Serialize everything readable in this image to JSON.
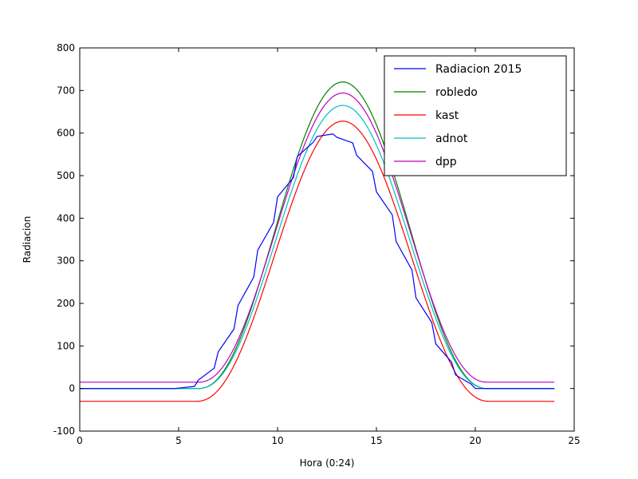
{
  "chart_data": {
    "type": "line",
    "xlabel": "Hora (0:24)",
    "ylabel": "Radiacion",
    "xlim": [
      0,
      25
    ],
    "ylim": [
      -100,
      800
    ],
    "xticks": [
      0,
      5,
      10,
      15,
      20,
      25
    ],
    "yticks": [
      -100,
      0,
      100,
      200,
      300,
      400,
      500,
      600,
      700,
      800
    ],
    "grid": false,
    "legend_position": "top-right",
    "series": [
      {
        "name": "Radiacion 2015",
        "color": "#0000ff",
        "kind": "observed",
        "x": [
          0,
          4.8,
          5.8,
          6.0,
          6.8,
          7.0,
          7.8,
          8.0,
          8.8,
          9.0,
          9.8,
          10.0,
          10.8,
          11.0,
          11.8,
          12.0,
          12.8,
          13.0,
          13.8,
          14.0,
          14.8,
          15.0,
          15.8,
          16.0,
          16.8,
          17.0,
          17.8,
          18.0,
          18.8,
          19.0,
          19.8,
          20.0,
          24.0
        ],
        "y": [
          0,
          0,
          5,
          20,
          48,
          86,
          140,
          195,
          262,
          325,
          390,
          450,
          495,
          545,
          578,
          592,
          598,
          590,
          577,
          548,
          510,
          462,
          408,
          345,
          278,
          213,
          155,
          105,
          62,
          32,
          10,
          0,
          0
        ]
      },
      {
        "name": "robledo",
        "color": "#008000",
        "kind": "model",
        "baseline": 0,
        "peak": 720,
        "center": 13.3,
        "start": 6.0,
        "end": 20.6
      },
      {
        "name": "kast",
        "color": "#ff0000",
        "kind": "model",
        "baseline": -30,
        "peak": 628,
        "center": 13.3,
        "start": 5.9,
        "end": 20.8
      },
      {
        "name": "adnot",
        "color": "#00bfbf",
        "kind": "model",
        "baseline": 0,
        "peak": 665,
        "center": 13.3,
        "start": 6.0,
        "end": 20.6
      },
      {
        "name": "dpp",
        "color": "#bf00bf",
        "kind": "model",
        "baseline": 15,
        "peak": 694,
        "center": 13.3,
        "start": 6.0,
        "end": 20.6
      }
    ]
  }
}
